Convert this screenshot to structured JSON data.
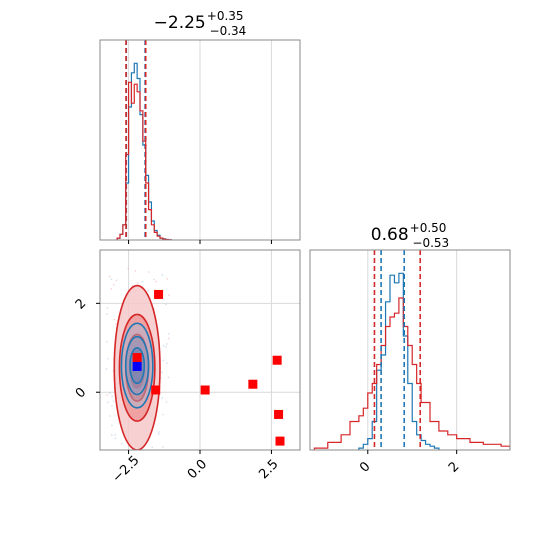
{
  "chart_data": [
    {
      "type": "histogram",
      "panel": "marginal-x",
      "title": {
        "value": "−2.25",
        "sup": "+0.35",
        "sub": "−0.34"
      },
      "xlim": [
        -3.5,
        3.5
      ],
      "x_ticks": [
        -2.5,
        0.0,
        2.5
      ],
      "x_tick_labels": [],
      "grid": true,
      "series": [
        {
          "color": "#1f77b4",
          "bin_edges": [
            -2.9,
            -2.8,
            -2.7,
            -2.6,
            -2.5,
            -2.4,
            -2.3,
            -2.2,
            -2.1,
            -2.0,
            -1.9,
            -1.8,
            -1.7,
            -1.6,
            -1.5,
            -1.4,
            -1.3,
            -1.2,
            -1.1,
            -1.0
          ],
          "counts": [
            0.01,
            0.03,
            0.08,
            0.3,
            0.7,
            0.88,
            0.93,
            0.85,
            0.66,
            0.5,
            0.34,
            0.2,
            0.1,
            0.05,
            0.025,
            0.01,
            0.006,
            0.003,
            0.001
          ]
        },
        {
          "color": "#d62728",
          "bin_edges": [
            -2.9,
            -2.8,
            -2.7,
            -2.6,
            -2.5,
            -2.4,
            -2.3,
            -2.2,
            -2.1,
            -2.0,
            -1.9,
            -1.8,
            -1.7,
            -1.6,
            -1.5,
            -1.4,
            -1.3,
            -1.2,
            -1.1,
            -1.0
          ],
          "counts": [
            0.01,
            0.03,
            0.08,
            0.45,
            0.83,
            0.72,
            0.82,
            0.78,
            0.68,
            0.52,
            0.3,
            0.16,
            0.08,
            0.04,
            0.02,
            0.01,
            0.004,
            0.002,
            0.001
          ]
        }
      ],
      "quantile_lines": [
        {
          "x": -2.58,
          "color": "#1f77b4"
        },
        {
          "x": -1.92,
          "color": "#1f77b4"
        },
        {
          "x": -2.59,
          "color": "#d62728"
        },
        {
          "x": -1.9,
          "color": "#d62728"
        }
      ]
    },
    {
      "type": "contour",
      "panel": "joint",
      "xlim": [
        -3.5,
        3.5
      ],
      "ylim": [
        -1.3,
        3.2
      ],
      "x_ticks": [
        -2.5,
        0.0,
        2.5
      ],
      "x_tick_labels": [
        "−2.5",
        "0.0",
        "2.5"
      ],
      "y_ticks": [
        0,
        2
      ],
      "y_tick_labels": [
        "0",
        "2"
      ],
      "grid": true,
      "red_contours": {
        "center": [
          -2.2,
          0.55
        ],
        "radii": [
          [
            0.8,
            1.85
          ],
          [
            0.62,
            1.2
          ],
          [
            0.4,
            0.75
          ],
          [
            0.25,
            0.45
          ]
        ]
      },
      "blue_contours": {
        "center": [
          -2.2,
          0.6
        ],
        "radii": [
          [
            0.55,
            0.95
          ],
          [
            0.4,
            0.65
          ],
          [
            0.25,
            0.4
          ]
        ]
      },
      "red_points": [
        {
          "x": -1.45,
          "y": 2.2
        },
        {
          "x": -2.2,
          "y": 0.78
        },
        {
          "x": -1.55,
          "y": 0.05
        },
        {
          "x": 0.18,
          "y": 0.05
        },
        {
          "x": 1.85,
          "y": 0.18
        },
        {
          "x": 2.7,
          "y": 0.72
        },
        {
          "x": 2.75,
          "y": -0.5
        },
        {
          "x": 2.8,
          "y": -1.1
        }
      ],
      "blue_point": {
        "x": -2.2,
        "y": 0.58
      }
    },
    {
      "type": "histogram",
      "panel": "marginal-y",
      "title": {
        "value": "0.68",
        "sup": "+0.50",
        "sub": "−0.53"
      },
      "xlim": [
        -1.3,
        3.2
      ],
      "x_ticks": [
        0,
        2
      ],
      "x_tick_labels": [
        "0",
        "2"
      ],
      "grid": true,
      "series": [
        {
          "color": "#1f77b4",
          "bin_edges": [
            -0.2,
            -0.1,
            0.0,
            0.1,
            0.2,
            0.3,
            0.4,
            0.5,
            0.6,
            0.7,
            0.8,
            0.9,
            1.0,
            1.1,
            1.2,
            1.3,
            1.4,
            1.5,
            1.6
          ],
          "counts": [
            0.01,
            0.03,
            0.06,
            0.15,
            0.42,
            0.5,
            0.78,
            0.92,
            0.88,
            0.93,
            0.6,
            0.35,
            0.15,
            0.08,
            0.05,
            0.03,
            0.02,
            0.01
          ]
        },
        {
          "color": "#d62728",
          "bin_edges": [
            -1.2,
            -0.9,
            -0.6,
            -0.4,
            -0.2,
            -0.1,
            0.0,
            0.1,
            0.2,
            0.3,
            0.4,
            0.5,
            0.6,
            0.7,
            0.8,
            0.9,
            1.0,
            1.1,
            1.2,
            1.4,
            1.6,
            1.8,
            2.0,
            2.3,
            2.6,
            3.0,
            3.2
          ],
          "counts": [
            0.01,
            0.04,
            0.08,
            0.15,
            0.18,
            0.22,
            0.3,
            0.35,
            0.45,
            0.55,
            0.65,
            0.7,
            0.72,
            0.8,
            0.65,
            0.55,
            0.45,
            0.35,
            0.25,
            0.15,
            0.1,
            0.08,
            0.06,
            0.04,
            0.03,
            0.02
          ]
        }
      ],
      "quantile_lines": [
        {
          "x": 0.3,
          "color": "#1f77b4"
        },
        {
          "x": 0.82,
          "color": "#1f77b4"
        },
        {
          "x": 0.15,
          "color": "#d62728"
        },
        {
          "x": 1.18,
          "color": "#d62728"
        }
      ]
    }
  ]
}
